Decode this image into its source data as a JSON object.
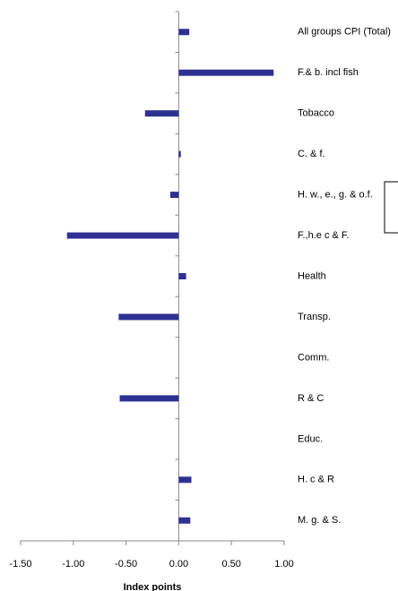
{
  "chart_data": {
    "type": "barh",
    "categories": [
      "All groups CPI (Total)",
      "F.& b. incl fish",
      "Tobacco",
      "C. & f.",
      "H. w., e., g. & o.f.",
      "F.,h.e c & F.",
      "Health",
      "Transp.",
      "Comm.",
      "R & C",
      "Educ.",
      "H. c & R",
      "M. g. & S."
    ],
    "values": [
      0.1,
      0.9,
      -0.32,
      0.02,
      -0.08,
      -1.06,
      0.07,
      -0.57,
      0,
      -0.56,
      0,
      0.12,
      0.11
    ],
    "color": "#2e3192",
    "xlabel": "Index points",
    "xlim": [
      -1.5,
      1.0
    ],
    "xticks": [
      {
        "value": -1.5,
        "label": "-1.50"
      },
      {
        "value": -1.0,
        "label": "-1.00"
      },
      {
        "value": -0.5,
        "label": "-0.50"
      },
      {
        "value": 0,
        "label": "0.00"
      },
      {
        "value": 0.5,
        "label": "0.50"
      },
      {
        "value": 1.0,
        "label": "1.00"
      }
    ]
  }
}
